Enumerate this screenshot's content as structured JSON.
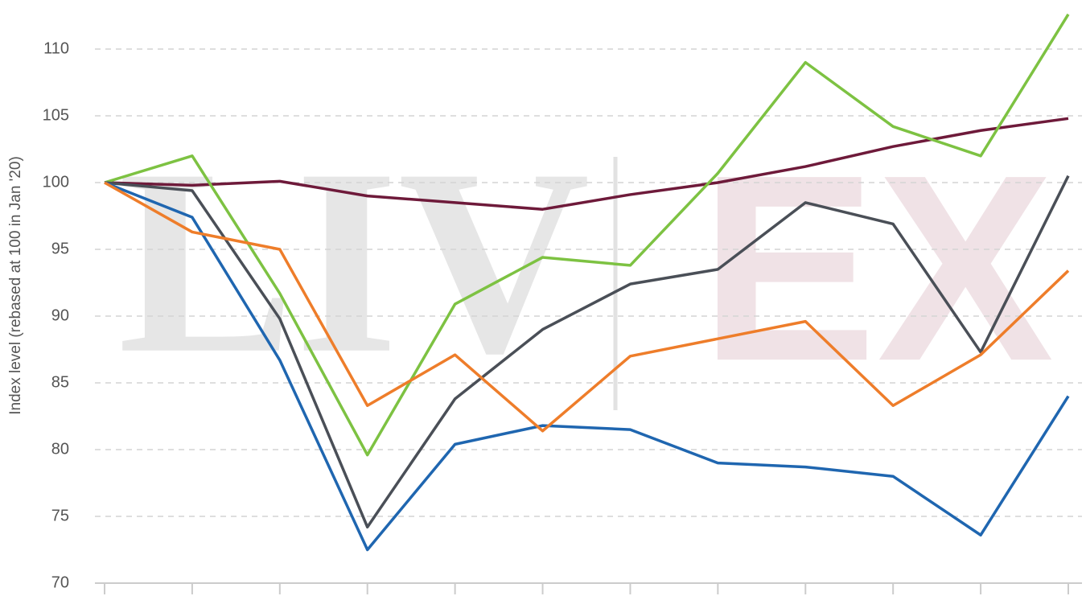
{
  "chart_data": {
    "type": "line",
    "y_label": "Index level (rebased at 100 in Jan '20)",
    "watermark": [
      "LIV",
      "EX"
    ],
    "categories": [
      null,
      null,
      null,
      null,
      null,
      null,
      null,
      null,
      null,
      null,
      null,
      null
    ],
    "series": [
      {
        "color": "#6e1a3a",
        "values": [
          100,
          99.8,
          100.1,
          99,
          98.5,
          98,
          99.1,
          100,
          101.2,
          102.7,
          103.9,
          104.8
        ]
      },
      {
        "color": "#7dc242",
        "values": [
          100,
          102,
          91.7,
          79.6,
          90.9,
          94.4,
          93.8,
          100.7,
          109,
          104.2,
          102,
          112.6
        ]
      },
      {
        "color": "#4a4f57",
        "values": [
          100,
          99.4,
          89.8,
          74.2,
          83.8,
          89,
          92.4,
          93.5,
          98.5,
          96.9,
          87.3,
          100.5
        ]
      },
      {
        "color": "#1f66b0",
        "values": [
          100,
          97.4,
          86.7,
          72.5,
          80.4,
          81.8,
          81.5,
          79,
          78.7,
          78,
          73.6,
          84
        ]
      },
      {
        "color": "#ee7d2a",
        "values": [
          100,
          96.3,
          95,
          83.3,
          87.1,
          81.4,
          87,
          88.3,
          89.6,
          83.3,
          87.1,
          93.4
        ]
      }
    ],
    "ylim": [
      70,
      115
    ],
    "yticks": [
      70,
      75,
      80,
      85,
      90,
      95,
      100,
      105,
      110
    ],
    "grid": true
  }
}
